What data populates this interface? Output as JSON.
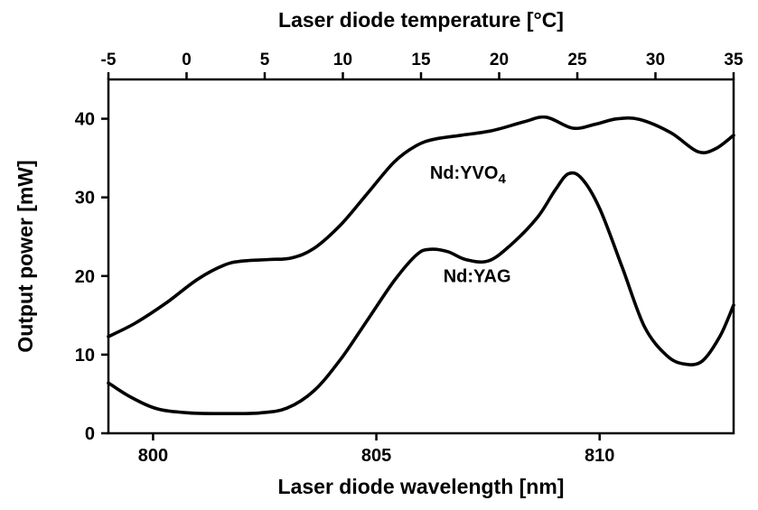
{
  "figure": {
    "top_axis_title": "Laser diode temperature [°C]",
    "bottom_axis_title": "Laser diode wavelength [nm]",
    "y_axis_title": "Output power [mW]"
  },
  "chart_data": {
    "type": "line",
    "title": "",
    "xlabel_bottom": "Laser diode wavelength [nm]",
    "xlabel_top": "Laser diode temperature [°C]",
    "ylabel": "Output power [mW]",
    "xlim": [
      799,
      813
    ],
    "top_xlim": [
      -5,
      35
    ],
    "ylim": [
      0,
      45
    ],
    "x_ticks_bottom": [
      800,
      805,
      810
    ],
    "x_ticks_top": [
      -5,
      0,
      5,
      10,
      15,
      20,
      25,
      30,
      35
    ],
    "y_ticks": [
      0,
      10,
      20,
      30,
      40
    ],
    "grid": false,
    "line_color": "#000000",
    "series": [
      {
        "name": "Nd:YVO4",
        "points": [
          [
            799.0,
            12.3
          ],
          [
            799.6,
            14.0
          ],
          [
            800.3,
            16.6
          ],
          [
            801.0,
            19.6
          ],
          [
            801.6,
            21.4
          ],
          [
            802.0,
            21.9
          ],
          [
            802.6,
            22.1
          ],
          [
            803.1,
            22.3
          ],
          [
            803.6,
            23.5
          ],
          [
            804.2,
            26.5
          ],
          [
            804.8,
            30.5
          ],
          [
            805.4,
            34.5
          ],
          [
            805.9,
            36.6
          ],
          [
            806.3,
            37.4
          ],
          [
            806.9,
            37.9
          ],
          [
            807.6,
            38.5
          ],
          [
            808.3,
            39.6
          ],
          [
            808.8,
            40.2
          ],
          [
            809.4,
            38.8
          ],
          [
            809.9,
            39.3
          ],
          [
            810.4,
            40.0
          ],
          [
            810.9,
            39.9
          ],
          [
            811.6,
            38.2
          ],
          [
            812.2,
            35.8
          ],
          [
            812.6,
            36.2
          ],
          [
            813.0,
            37.9
          ]
        ]
      },
      {
        "name": "Nd:YAG",
        "points": [
          [
            799.0,
            6.4
          ],
          [
            799.5,
            4.6
          ],
          [
            800.1,
            3.1
          ],
          [
            800.8,
            2.6
          ],
          [
            801.6,
            2.5
          ],
          [
            802.4,
            2.6
          ],
          [
            803.0,
            3.2
          ],
          [
            803.6,
            5.4
          ],
          [
            804.2,
            9.4
          ],
          [
            804.8,
            14.4
          ],
          [
            805.4,
            19.4
          ],
          [
            805.9,
            22.7
          ],
          [
            806.2,
            23.4
          ],
          [
            806.6,
            23.1
          ],
          [
            807.0,
            22.1
          ],
          [
            807.5,
            21.9
          ],
          [
            808.0,
            23.9
          ],
          [
            808.6,
            27.4
          ],
          [
            809.0,
            30.9
          ],
          [
            809.3,
            33.0
          ],
          [
            809.6,
            32.4
          ],
          [
            810.0,
            28.6
          ],
          [
            810.5,
            21.2
          ],
          [
            811.0,
            13.6
          ],
          [
            811.5,
            9.9
          ],
          [
            811.9,
            8.8
          ],
          [
            812.3,
            9.2
          ],
          [
            812.7,
            12.4
          ],
          [
            813.0,
            16.3
          ]
        ]
      }
    ],
    "annotations": [
      {
        "text": "Nd:YVO",
        "sub": "4",
        "x": 806.2,
        "y": 32.4
      },
      {
        "text": "Nd:YAG",
        "sub": "",
        "x": 806.5,
        "y": 19.2
      }
    ]
  }
}
